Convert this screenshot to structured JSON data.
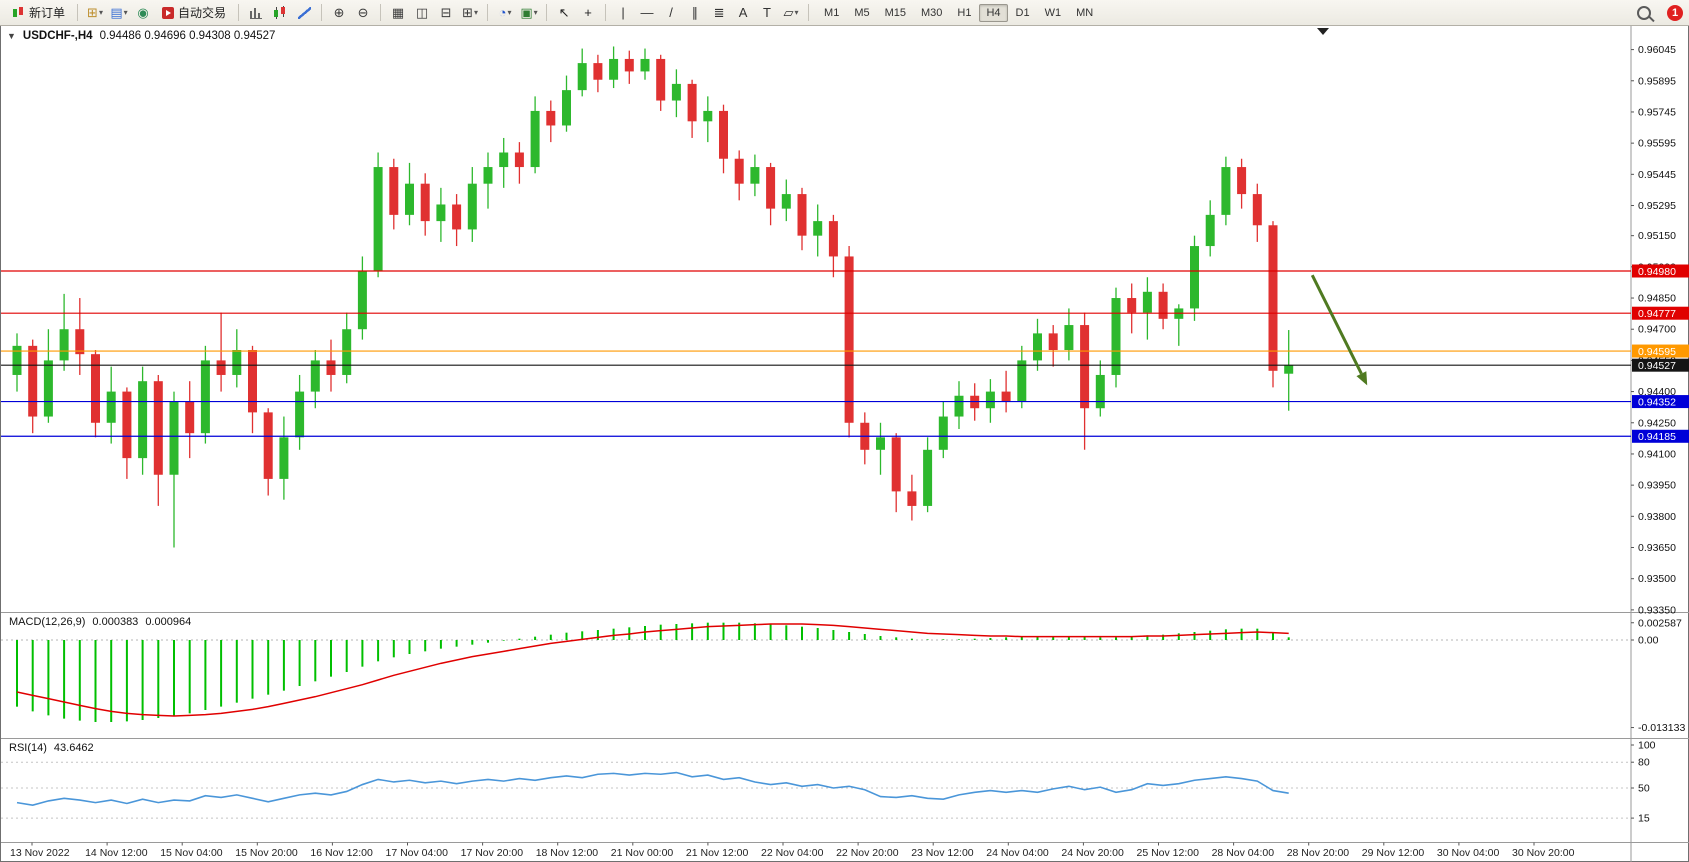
{
  "toolbar": {
    "items": [
      {
        "kind": "button",
        "name": "new-order-button",
        "icon": "ic-order",
        "icon_name": "new-order-icon",
        "label": "新订单"
      },
      {
        "kind": "sep"
      },
      {
        "kind": "icon",
        "name": "new-chart-button",
        "glyph": "⊞",
        "color": "#bd8f2e",
        "dd": true,
        "icon_name": "new-chart-icon"
      },
      {
        "kind": "icon",
        "name": "profiles-button",
        "glyph": "▤",
        "color": "#3b6fd4",
        "dd": true,
        "icon_name": "profiles-icon"
      },
      {
        "kind": "icon",
        "name": "market-watch-button",
        "glyph": "◉",
        "color": "#2e8b57",
        "icon_name": "market-watch-icon"
      },
      {
        "kind": "button",
        "name": "autotrading-button",
        "icon": "ic-auto",
        "icon_name": "autotrading-icon",
        "label": "自动交易"
      },
      {
        "kind": "sep"
      },
      {
        "kind": "icon",
        "name": "bar-chart-button",
        "icon": "ic-bars",
        "icon_name": "bar-chart-icon"
      },
      {
        "kind": "icon",
        "name": "candle-chart-button",
        "icon": "ic-candles",
        "icon_name": "candlestick-chart-icon"
      },
      {
        "kind": "icon",
        "name": "line-chart-button",
        "icon": "ic-linechart",
        "icon_name": "line-chart-icon"
      },
      {
        "kind": "sep"
      },
      {
        "kind": "icon",
        "name": "zoom-in-button",
        "glyph": "⊕",
        "color": "#3c3c3c",
        "icon_name": "zoom-in-icon"
      },
      {
        "kind": "icon",
        "name": "zoom-out-button",
        "glyph": "⊖",
        "color": "#3c3c3c",
        "icon_name": "zoom-out-icon"
      },
      {
        "kind": "sep"
      },
      {
        "kind": "icon",
        "name": "tile-windows-button",
        "glyph": "▦",
        "color": "#3c3c3c",
        "icon_name": "tile-windows-icon"
      },
      {
        "kind": "icon",
        "name": "indicator-window-button",
        "glyph": "◫",
        "color": "#3c3c3c",
        "icon_name": "indicator-window-icon"
      },
      {
        "kind": "icon",
        "name": "auto-arrange-button",
        "glyph": "⊟",
        "color": "#3c3c3c",
        "icon_name": "auto-arrange-icon"
      },
      {
        "kind": "icon",
        "name": "new-window-button",
        "glyph": "⊞",
        "color": "#3c3c3c",
        "dd": true,
        "icon_name": "new-window-icon"
      },
      {
        "kind": "sep"
      },
      {
        "kind": "icon",
        "name": "period-button",
        "glyph": "◔",
        "color": "#2255cc",
        "dd": true,
        "icon_name": "clock-icon"
      },
      {
        "kind": "icon",
        "name": "template-button",
        "glyph": "▣",
        "color": "#2e7d32",
        "dd": true,
        "icon_name": "template-icon"
      },
      {
        "kind": "sep"
      },
      {
        "kind": "icon",
        "name": "cursor-button",
        "glyph": "↖",
        "color": "#222",
        "icon_name": "cursor-icon"
      },
      {
        "kind": "icon",
        "name": "crosshair-button",
        "glyph": "+",
        "color": "#222",
        "icon_name": "crosshair-icon"
      },
      {
        "kind": "sep"
      },
      {
        "kind": "icon",
        "name": "vertical-line-button",
        "glyph": "|",
        "color": "#333",
        "icon_name": "vertical-line-icon"
      },
      {
        "kind": "icon",
        "name": "horizontal-line-button",
        "glyph": "—",
        "color": "#333",
        "icon_name": "horizontal-line-icon"
      },
      {
        "kind": "icon",
        "name": "trendline-button",
        "glyph": "/",
        "color": "#333",
        "icon_name": "trendline-icon"
      },
      {
        "kind": "icon",
        "name": "channel-button",
        "glyph": "∥",
        "color": "#333",
        "icon_name": "equidistant-channel-icon"
      },
      {
        "kind": "icon",
        "name": "fibonacci-button",
        "glyph": "≣",
        "color": "#333",
        "icon_name": "fibonacci-icon"
      },
      {
        "kind": "icon",
        "name": "text-button",
        "glyph": "A",
        "color": "#333",
        "icon_name": "text-icon"
      },
      {
        "kind": "icon",
        "name": "text-label-button",
        "glyph": "T",
        "color": "#333",
        "icon_name": "text-label-icon"
      },
      {
        "kind": "icon",
        "name": "arrows-button",
        "glyph": "▱",
        "color": "#333",
        "dd": true,
        "icon_name": "shapes-icon"
      },
      {
        "kind": "sep"
      },
      {
        "kind": "tf-group",
        "name": "timeframe-toolbar"
      },
      {
        "kind": "spacer"
      },
      {
        "kind": "icon",
        "name": "search-button",
        "icon": "ic-mag",
        "icon_name": "search-icon"
      },
      {
        "kind": "badge",
        "name": "notification-badge",
        "label": "1",
        "color": "#e02020"
      }
    ],
    "timeframes": {
      "options": [
        "M1",
        "M5",
        "M15",
        "M30",
        "H1",
        "H4",
        "D1",
        "W1",
        "MN"
      ],
      "active": "H4"
    },
    "notification_count": "1"
  },
  "chart_data": {
    "type": "candlestick",
    "symbol_timeframe_label": "USDCHF-,H4",
    "ohlc_label": "0.94486 0.94696 0.94308 0.94527",
    "colors": {
      "up": "#2db82d",
      "down": "#e03131",
      "current_price": "#151515"
    },
    "price_axis_labels": [
      "0.96045",
      "0.95895",
      "0.95745",
      "0.95595",
      "0.95445",
      "0.95295",
      "0.95150",
      "0.95000",
      "0.94850",
      "0.94700",
      "0.94550",
      "0.94400",
      "0.94250",
      "0.94100",
      "0.93950",
      "0.93800",
      "0.93650",
      "0.93500",
      "0.93350"
    ],
    "time_axis_labels": [
      "13 Nov 2022",
      "14 Nov 12:00",
      "15 Nov 04:00",
      "15 Nov 20:00",
      "16 Nov 12:00",
      "17 Nov 04:00",
      "17 Nov 20:00",
      "18 Nov 12:00",
      "21 Nov 00:00",
      "21 Nov 12:00",
      "22 Nov 04:00",
      "22 Nov 20:00",
      "23 Nov 12:00",
      "24 Nov 04:00",
      "24 Nov 20:00",
      "25 Nov 12:00",
      "28 Nov 04:00",
      "28 Nov 20:00",
      "29 Nov 12:00",
      "30 Nov 04:00",
      "30 Nov 20:00"
    ],
    "candles": [
      [
        0.9448,
        0.9468,
        0.944,
        0.9462
      ],
      [
        0.9462,
        0.9465,
        0.942,
        0.9428
      ],
      [
        0.9428,
        0.947,
        0.9425,
        0.9455
      ],
      [
        0.9455,
        0.9487,
        0.945,
        0.947
      ],
      [
        0.947,
        0.9485,
        0.9448,
        0.9458
      ],
      [
        0.9458,
        0.946,
        0.9418,
        0.9425
      ],
      [
        0.9425,
        0.9452,
        0.9415,
        0.944
      ],
      [
        0.944,
        0.9442,
        0.9398,
        0.9408
      ],
      [
        0.9408,
        0.9452,
        0.94,
        0.9445
      ],
      [
        0.9445,
        0.9448,
        0.9385,
        0.94
      ],
      [
        0.94,
        0.944,
        0.9365,
        0.9435
      ],
      [
        0.9435,
        0.9445,
        0.9408,
        0.942
      ],
      [
        0.942,
        0.9462,
        0.9415,
        0.9455
      ],
      [
        0.9455,
        0.9478,
        0.944,
        0.9448
      ],
      [
        0.9448,
        0.947,
        0.9442,
        0.946
      ],
      [
        0.946,
        0.9462,
        0.942,
        0.943
      ],
      [
        0.943,
        0.9432,
        0.939,
        0.9398
      ],
      [
        0.9398,
        0.9428,
        0.9388,
        0.9418
      ],
      [
        0.9418,
        0.9448,
        0.9412,
        0.944
      ],
      [
        0.944,
        0.946,
        0.9432,
        0.9455
      ],
      [
        0.9455,
        0.9465,
        0.944,
        0.9448
      ],
      [
        0.9448,
        0.9478,
        0.9444,
        0.947
      ],
      [
        0.947,
        0.9505,
        0.9465,
        0.9498
      ],
      [
        0.9498,
        0.9555,
        0.9495,
        0.9548
      ],
      [
        0.9548,
        0.9552,
        0.9518,
        0.9525
      ],
      [
        0.9525,
        0.955,
        0.952,
        0.954
      ],
      [
        0.954,
        0.9545,
        0.9515,
        0.9522
      ],
      [
        0.9522,
        0.9538,
        0.9512,
        0.953
      ],
      [
        0.953,
        0.9535,
        0.951,
        0.9518
      ],
      [
        0.9518,
        0.9548,
        0.9512,
        0.954
      ],
      [
        0.954,
        0.9555,
        0.9528,
        0.9548
      ],
      [
        0.9548,
        0.9562,
        0.9538,
        0.9555
      ],
      [
        0.9555,
        0.956,
        0.954,
        0.9548
      ],
      [
        0.9548,
        0.9582,
        0.9545,
        0.9575
      ],
      [
        0.9575,
        0.958,
        0.956,
        0.9568
      ],
      [
        0.9568,
        0.9592,
        0.9565,
        0.9585
      ],
      [
        0.9585,
        0.9605,
        0.9582,
        0.9598
      ],
      [
        0.9598,
        0.9602,
        0.9584,
        0.959
      ],
      [
        0.959,
        0.9606,
        0.9586,
        0.96
      ],
      [
        0.96,
        0.9604,
        0.9588,
        0.9594
      ],
      [
        0.9594,
        0.9605,
        0.959,
        0.96
      ],
      [
        0.96,
        0.9602,
        0.9575,
        0.958
      ],
      [
        0.958,
        0.9595,
        0.9572,
        0.9588
      ],
      [
        0.9588,
        0.959,
        0.9562,
        0.957
      ],
      [
        0.957,
        0.9582,
        0.956,
        0.9575
      ],
      [
        0.9575,
        0.9578,
        0.9545,
        0.9552
      ],
      [
        0.9552,
        0.9556,
        0.9532,
        0.954
      ],
      [
        0.954,
        0.9554,
        0.9534,
        0.9548
      ],
      [
        0.9548,
        0.955,
        0.952,
        0.9528
      ],
      [
        0.9528,
        0.9542,
        0.9522,
        0.9535
      ],
      [
        0.9535,
        0.9538,
        0.9508,
        0.9515
      ],
      [
        0.9515,
        0.953,
        0.9505,
        0.9522
      ],
      [
        0.9522,
        0.9525,
        0.9495,
        0.9505
      ],
      [
        0.9505,
        0.951,
        0.9418,
        0.9425
      ],
      [
        0.9425,
        0.943,
        0.9405,
        0.9412
      ],
      [
        0.9412,
        0.9425,
        0.94,
        0.9418
      ],
      [
        0.9418,
        0.942,
        0.9382,
        0.9392
      ],
      [
        0.9392,
        0.94,
        0.9378,
        0.9385
      ],
      [
        0.9385,
        0.9418,
        0.9382,
        0.9412
      ],
      [
        0.9412,
        0.9435,
        0.9408,
        0.9428
      ],
      [
        0.9428,
        0.9445,
        0.9422,
        0.9438
      ],
      [
        0.9438,
        0.9444,
        0.9426,
        0.9432
      ],
      [
        0.9432,
        0.9446,
        0.9425,
        0.944
      ],
      [
        0.944,
        0.945,
        0.943,
        0.9435
      ],
      [
        0.9435,
        0.9462,
        0.9432,
        0.9455
      ],
      [
        0.9455,
        0.9475,
        0.945,
        0.9468
      ],
      [
        0.9468,
        0.9472,
        0.9452,
        0.946
      ],
      [
        0.946,
        0.948,
        0.9455,
        0.9472
      ],
      [
        0.9472,
        0.9478,
        0.9412,
        0.9432
      ],
      [
        0.9432,
        0.9455,
        0.9428,
        0.9448
      ],
      [
        0.9448,
        0.949,
        0.9442,
        0.9485
      ],
      [
        0.9485,
        0.9492,
        0.9468,
        0.9478
      ],
      [
        0.9478,
        0.9495,
        0.9465,
        0.9488
      ],
      [
        0.9488,
        0.9492,
        0.947,
        0.9475
      ],
      [
        0.9475,
        0.9482,
        0.9462,
        0.948
      ],
      [
        0.948,
        0.9515,
        0.9474,
        0.951
      ],
      [
        0.951,
        0.9532,
        0.9505,
        0.9525
      ],
      [
        0.9525,
        0.9553,
        0.952,
        0.9548
      ],
      [
        0.9548,
        0.9552,
        0.9528,
        0.9535
      ],
      [
        0.9535,
        0.954,
        0.9512,
        0.952
      ],
      [
        0.952,
        0.9522,
        0.9442,
        0.945
      ],
      [
        0.94486,
        0.94696,
        0.94308,
        0.94527
      ]
    ],
    "levels": [
      {
        "value": 0.9498,
        "label": "0.94980",
        "color": "#e00000"
      },
      {
        "value": 0.94777,
        "label": "0.94777",
        "color": "#e00000"
      },
      {
        "value": 0.94595,
        "label": "0.94595",
        "color": "#ff9900"
      },
      {
        "value": 0.94527,
        "label": "0.94527",
        "color": "#151515",
        "is_current_price": true
      },
      {
        "value": 0.94352,
        "label": "0.94352",
        "color": "#0000d8"
      },
      {
        "value": 0.94185,
        "label": "0.94185",
        "color": "#0000d8"
      }
    ],
    "trend_arrow": {
      "from": {
        "bar": 82.5,
        "price": 0.9496
      },
      "to": {
        "bar": 86,
        "price": 0.9443
      },
      "color": "#4f7a21"
    },
    "macd": {
      "name": "MACD(12,26,9)",
      "value_main": "0.000383",
      "value_signal": "0.000964",
      "axis_labels": [
        "0.002587",
        "0.00",
        "-0.013133"
      ],
      "colors": {
        "histogram": "#00bf00",
        "signal": "#e00000"
      },
      "histogram": [
        -0.01,
        -0.0107,
        -0.0113,
        -0.0118,
        -0.0121,
        -0.0123,
        -0.0123,
        -0.0122,
        -0.012,
        -0.0117,
        -0.0114,
        -0.011,
        -0.0105,
        -0.01,
        -0.0094,
        -0.0088,
        -0.0082,
        -0.0076,
        -0.0069,
        -0.0062,
        -0.0055,
        -0.0048,
        -0.004,
        -0.0032,
        -0.0026,
        -0.0021,
        -0.0017,
        -0.0013,
        -0.001,
        -0.0007,
        -0.0004,
        -0.0001,
        0.0002,
        0.0005,
        0.0008,
        0.0011,
        0.0013,
        0.0015,
        0.0017,
        0.0019,
        0.0021,
        0.0023,
        0.0024,
        0.0025,
        0.0026,
        0.0026,
        0.0026,
        0.0025,
        0.0024,
        0.0022,
        0.002,
        0.0018,
        0.0015,
        0.0012,
        0.0009,
        0.0006,
        0.0004,
        0.0002,
        0.0001,
        0.0001,
        0.0001,
        0.0002,
        0.0003,
        0.0004,
        0.0005,
        0.0005,
        0.0006,
        0.0006,
        0.0005,
        0.0004,
        0.0004,
        0.0005,
        0.0007,
        0.0008,
        0.001,
        0.0012,
        0.0014,
        0.0016,
        0.0017,
        0.0017,
        0.0012,
        0.0004
      ],
      "signal": [
        -0.0078,
        -0.0083,
        -0.0088,
        -0.0093,
        -0.0098,
        -0.0103,
        -0.0107,
        -0.011,
        -0.0112,
        -0.0113,
        -0.0114,
        -0.0113,
        -0.0112,
        -0.011,
        -0.0107,
        -0.0104,
        -0.01,
        -0.0095,
        -0.009,
        -0.0085,
        -0.0079,
        -0.0073,
        -0.0067,
        -0.006,
        -0.0053,
        -0.0047,
        -0.0041,
        -0.0035,
        -0.003,
        -0.0025,
        -0.0021,
        -0.0017,
        -0.0013,
        -0.0009,
        -0.0005,
        -0.0002,
        0.0001,
        0.0004,
        0.0007,
        0.0009,
        0.0012,
        0.0014,
        0.0016,
        0.0018,
        0.002,
        0.0021,
        0.0022,
        0.0023,
        0.0024,
        0.0024,
        0.0024,
        0.0023,
        0.0022,
        0.002,
        0.0018,
        0.0016,
        0.0014,
        0.0012,
        0.001,
        0.0009,
        0.0008,
        0.0007,
        0.0006,
        0.0006,
        0.0005,
        0.0005,
        0.0005,
        0.0005,
        0.0005,
        0.0005,
        0.0005,
        0.0005,
        0.0006,
        0.0006,
        0.0007,
        0.0008,
        0.0009,
        0.001,
        0.0011,
        0.0012,
        0.0011,
        0.001
      ]
    },
    "rsi": {
      "name": "RSI(14)",
      "value": "43.6462",
      "color": "#4a96d9",
      "axis_labels": [
        "100",
        "80",
        "50",
        "15"
      ],
      "levels": [
        80,
        50,
        15
      ],
      "values": [
        33,
        30,
        35,
        38,
        36,
        33,
        36,
        32,
        37,
        33,
        36,
        35,
        41,
        39,
        42,
        38,
        34,
        38,
        42,
        44,
        42,
        46,
        54,
        60,
        57,
        59,
        56,
        58,
        55,
        58,
        60,
        58,
        61,
        59,
        62,
        64,
        62,
        66,
        67,
        65,
        67,
        66,
        68,
        63,
        65,
        60,
        62,
        57,
        54,
        56,
        52,
        54,
        50,
        52,
        48,
        40,
        39,
        41,
        38,
        37,
        42,
        45,
        47,
        45,
        47,
        45,
        49,
        52,
        48,
        51,
        45,
        48,
        55,
        53,
        55,
        59,
        61,
        63,
        61,
        58,
        47,
        44
      ]
    }
  }
}
